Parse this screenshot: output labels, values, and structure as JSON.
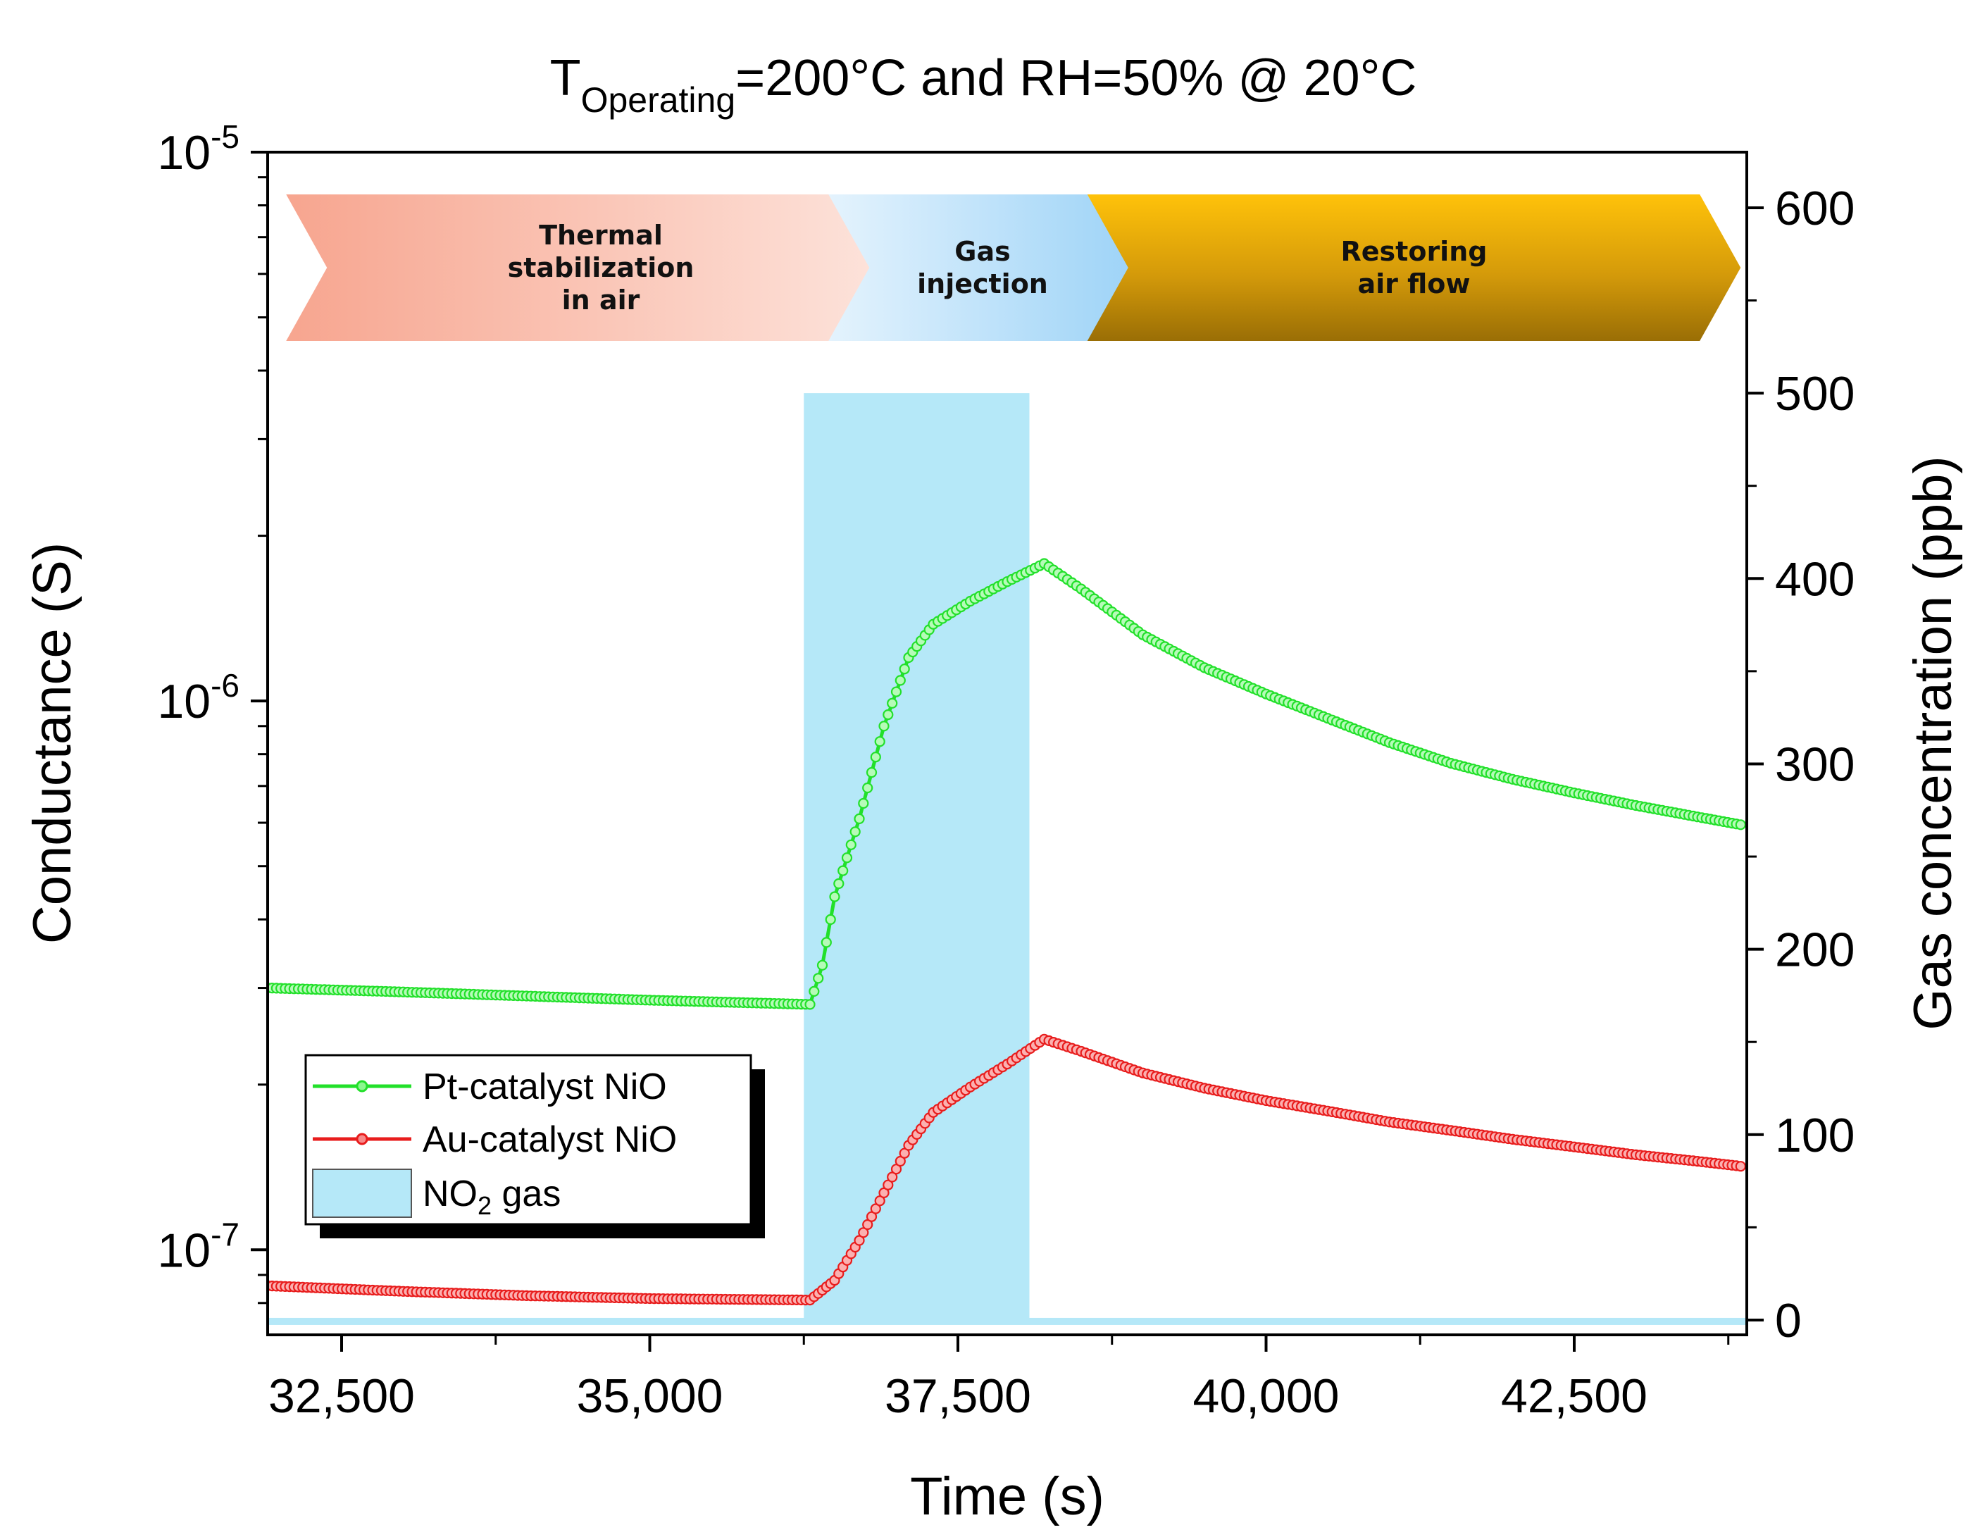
{
  "chart_data": {
    "type": "line",
    "title_main": "T",
    "title_sub": "Operating",
    "title_rest": "=200°C and RH=50% @ 20°C",
    "xlabel": "Time (s)",
    "ylabel_left": "Conductance (S)",
    "ylabel_right": "Gas concentration (ppb)",
    "x_range": [
      31900,
      43900
    ],
    "y_left_range": [
      7e-08,
      1e-05
    ],
    "y_left_scale": "log",
    "y_right_range": [
      -8,
      630
    ],
    "x_ticks": [
      {
        "value": 32500,
        "label": "32,500"
      },
      {
        "value": 35000,
        "label": "35,000"
      },
      {
        "value": 37500,
        "label": "37,500"
      },
      {
        "value": 40000,
        "label": "40,000"
      },
      {
        "value": 42500,
        "label": "42,500"
      }
    ],
    "y_left_ticks": [
      {
        "value": 1e-07,
        "base": "10",
        "exp": "-7"
      },
      {
        "value": 1e-06,
        "base": "10",
        "exp": "-6"
      },
      {
        "value": 1e-05,
        "base": "10",
        "exp": "-5"
      }
    ],
    "y_right_ticks": [
      {
        "value": 0,
        "label": "0"
      },
      {
        "value": 100,
        "label": "100"
      },
      {
        "value": 200,
        "label": "200"
      },
      {
        "value": 300,
        "label": "300"
      },
      {
        "value": 400,
        "label": "400"
      },
      {
        "value": 500,
        "label": "500"
      },
      {
        "value": 600,
        "label": "600"
      }
    ],
    "series": [
      {
        "name": "Pt-catalyst NiO",
        "color": "#22e02a",
        "axis": "left",
        "points": [
          [
            31900,
            3e-07
          ],
          [
            33000,
            2.95e-07
          ],
          [
            34000,
            2.9e-07
          ],
          [
            35000,
            2.85e-07
          ],
          [
            36300,
            2.8e-07
          ],
          [
            36400,
            3.3e-07
          ],
          [
            36500,
            4.4e-07
          ],
          [
            36700,
            6.1e-07
          ],
          [
            36900,
            9e-07
          ],
          [
            37100,
            1.2e-06
          ],
          [
            37300,
            1.38e-06
          ],
          [
            37600,
            1.52e-06
          ],
          [
            37900,
            1.65e-06
          ],
          [
            38200,
            1.78e-06
          ],
          [
            38500,
            1.6e-06
          ],
          [
            39000,
            1.32e-06
          ],
          [
            39500,
            1.15e-06
          ],
          [
            40000,
            1.03e-06
          ],
          [
            40500,
            9.3e-07
          ],
          [
            41000,
            8.4e-07
          ],
          [
            41500,
            7.7e-07
          ],
          [
            42000,
            7.2e-07
          ],
          [
            42500,
            6.8e-07
          ],
          [
            43000,
            6.45e-07
          ],
          [
            43500,
            6.15e-07
          ],
          [
            43850,
            5.95e-07
          ]
        ]
      },
      {
        "name": "Au-catalyst NiO",
        "color": "#e81c1c",
        "axis": "left",
        "points": [
          [
            31900,
            8.6e-08
          ],
          [
            33000,
            8.4e-08
          ],
          [
            34000,
            8.25e-08
          ],
          [
            35000,
            8.15e-08
          ],
          [
            36300,
            8.1e-08
          ],
          [
            36500,
            8.8e-08
          ],
          [
            36700,
            1.04e-07
          ],
          [
            36900,
            1.27e-07
          ],
          [
            37100,
            1.55e-07
          ],
          [
            37300,
            1.78e-07
          ],
          [
            37600,
            1.98e-07
          ],
          [
            37900,
            2.18e-07
          ],
          [
            38200,
            2.42e-07
          ],
          [
            38500,
            2.3e-07
          ],
          [
            39000,
            2.1e-07
          ],
          [
            39500,
            1.97e-07
          ],
          [
            40000,
            1.87e-07
          ],
          [
            40500,
            1.79e-07
          ],
          [
            41000,
            1.71e-07
          ],
          [
            41500,
            1.65e-07
          ],
          [
            42000,
            1.59e-07
          ],
          [
            42500,
            1.54e-07
          ],
          [
            43000,
            1.49e-07
          ],
          [
            43500,
            1.45e-07
          ],
          [
            43850,
            1.42e-07
          ]
        ]
      }
    ],
    "gas": {
      "name": "NO2 gas",
      "label_main": "NO",
      "label_sub": "2",
      "label_rest": " gas",
      "color": "#b5e8f8",
      "axis": "right",
      "start": 36250,
      "end": 38080,
      "concentration": 500,
      "baseline": 0
    },
    "phases": [
      {
        "lines": [
          "Thermal",
          "stabilization",
          "in air"
        ],
        "x_start": 32050,
        "x_end": 36950
      },
      {
        "lines": [
          "Gas",
          "injection"
        ],
        "x_start": 36450,
        "x_end": 38950
      },
      {
        "lines": [
          "Restoring",
          "air flow"
        ],
        "x_start": 38550,
        "x_end": 43850
      }
    ],
    "legend": {
      "position": "bottom-left",
      "entries": [
        "Pt-catalyst NiO",
        "Au-catalyst NiO",
        "NO2 gas"
      ]
    }
  }
}
